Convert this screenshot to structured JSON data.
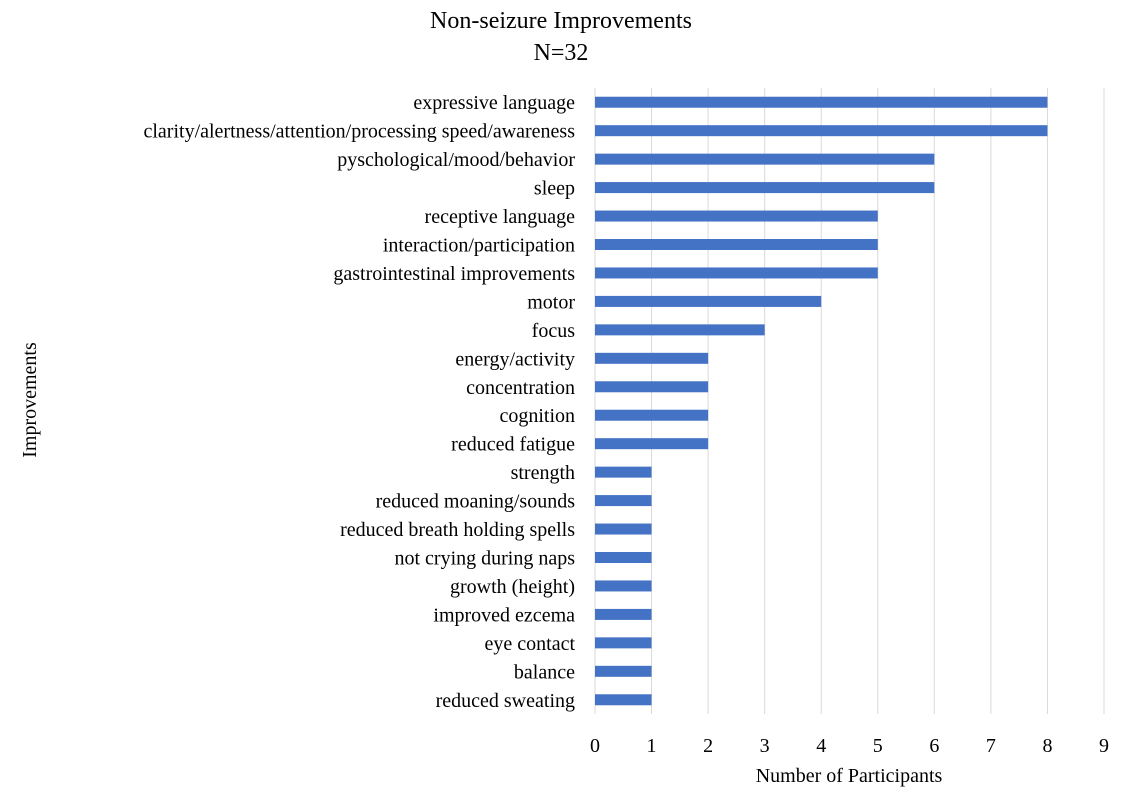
{
  "chart_data": {
    "type": "bar",
    "orientation": "horizontal",
    "title": "Non-seizure Improvements",
    "subtitle": "N=32",
    "xlabel": "Number of Participants",
    "ylabel": "Improvements",
    "xlim": [
      0,
      9
    ],
    "xticks": [
      0,
      1,
      2,
      3,
      4,
      5,
      6,
      7,
      8,
      9
    ],
    "grid": true,
    "legend": "none",
    "bar_color": "#4472C4",
    "categories": [
      "expressive language",
      "clarity/alertness/attention/processing speed/awareness",
      "pyschological/mood/behavior",
      "sleep",
      "receptive language",
      "interaction/participation",
      "gastrointestinal improvements",
      "motor",
      "focus",
      "energy/activity",
      "concentration",
      "cognition",
      "reduced fatigue",
      "strength",
      "reduced moaning/sounds",
      "reduced breath holding spells",
      "not crying during naps",
      "growth (height)",
      "improved ezcema",
      "eye contact",
      "balance",
      "reduced sweating"
    ],
    "values": [
      8,
      8,
      6,
      6,
      5,
      5,
      5,
      4,
      3,
      2,
      2,
      2,
      2,
      1,
      1,
      1,
      1,
      1,
      1,
      1,
      1,
      1
    ]
  }
}
